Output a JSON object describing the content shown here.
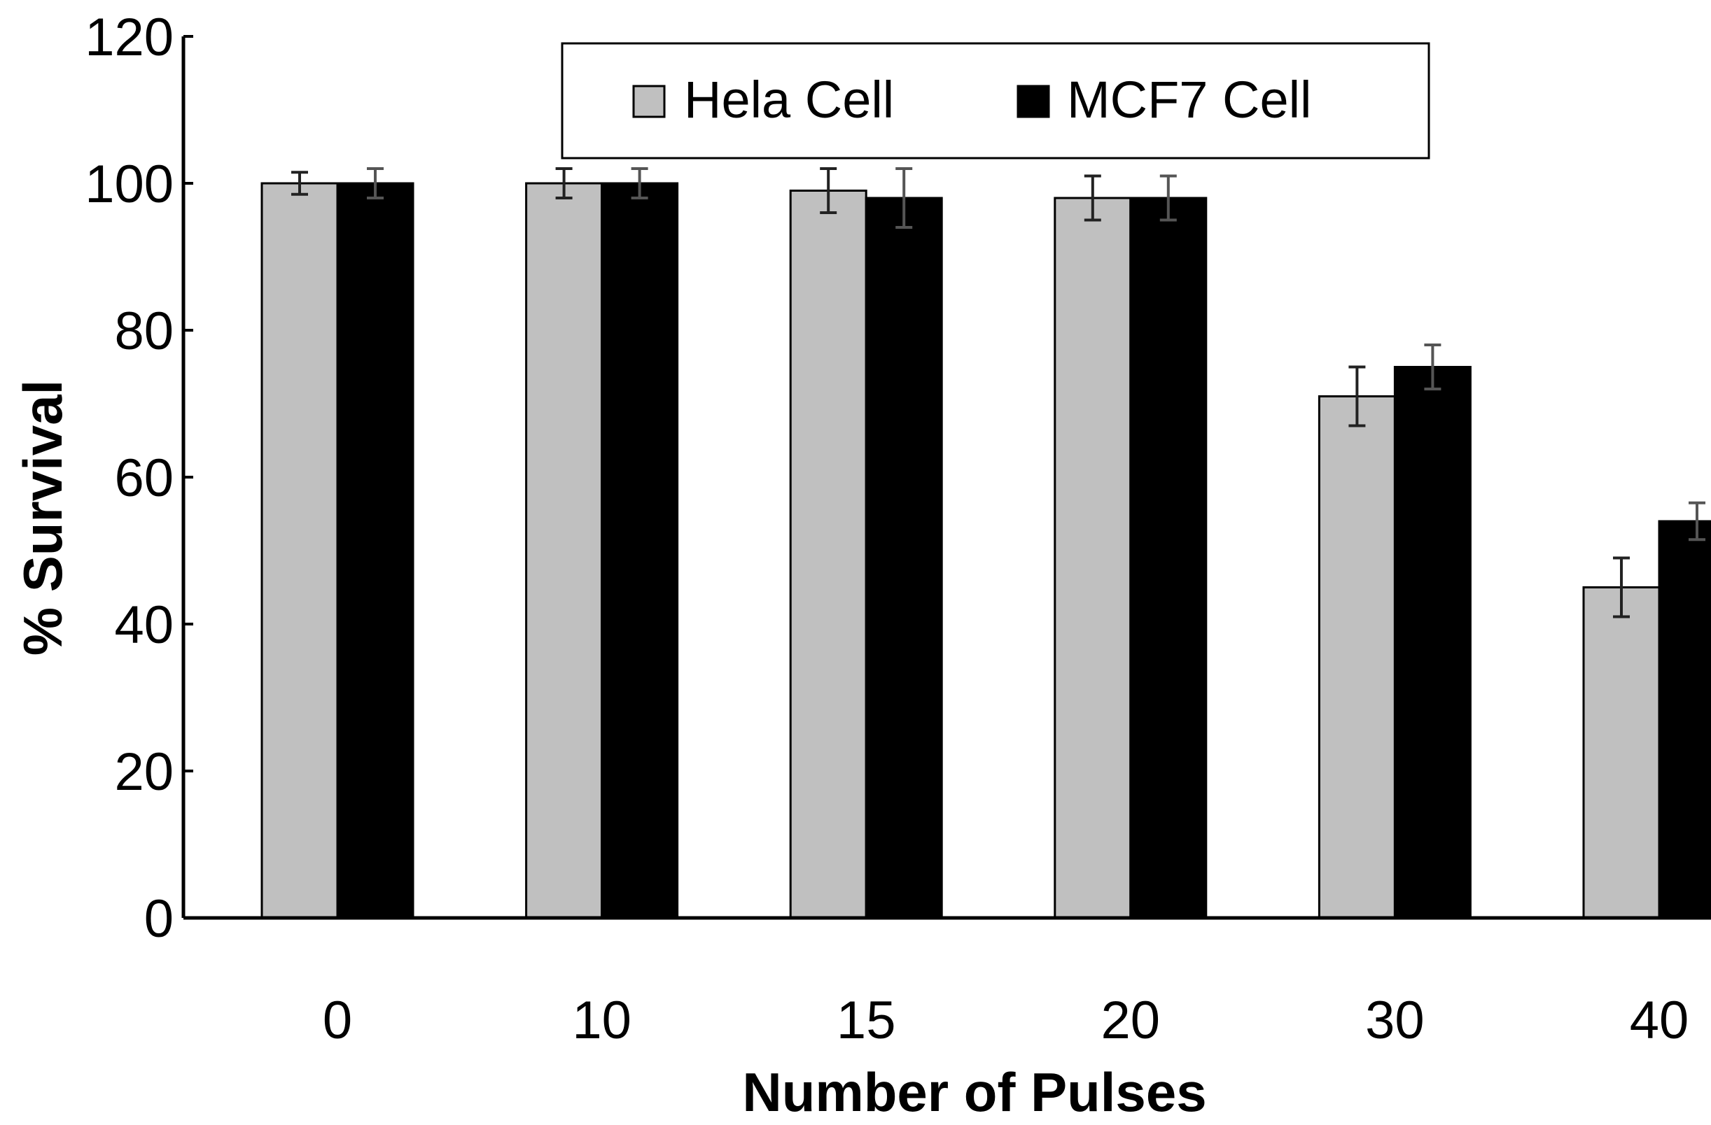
{
  "chart_data": {
    "type": "bar",
    "title": "",
    "xlabel": "Number of Pulses",
    "ylabel": "% Survival",
    "categories": [
      "0",
      "10",
      "15",
      "20",
      "30",
      "40"
    ],
    "ylim": [
      0,
      120
    ],
    "yticks": [
      0,
      20,
      40,
      60,
      80,
      100,
      120
    ],
    "grid": false,
    "legend_position": "top-center",
    "series": [
      {
        "name": "Hela Cell",
        "color": "#c0c0c0",
        "values": [
          100,
          100,
          99,
          98,
          71,
          45
        ],
        "errors": [
          1.5,
          2,
          3,
          3,
          4,
          4
        ]
      },
      {
        "name": "MCF7 Cell",
        "color": "#000000",
        "values": [
          100,
          100,
          98,
          98,
          75,
          54
        ],
        "errors": [
          2,
          2,
          4,
          3,
          3,
          2.5
        ]
      }
    ]
  }
}
